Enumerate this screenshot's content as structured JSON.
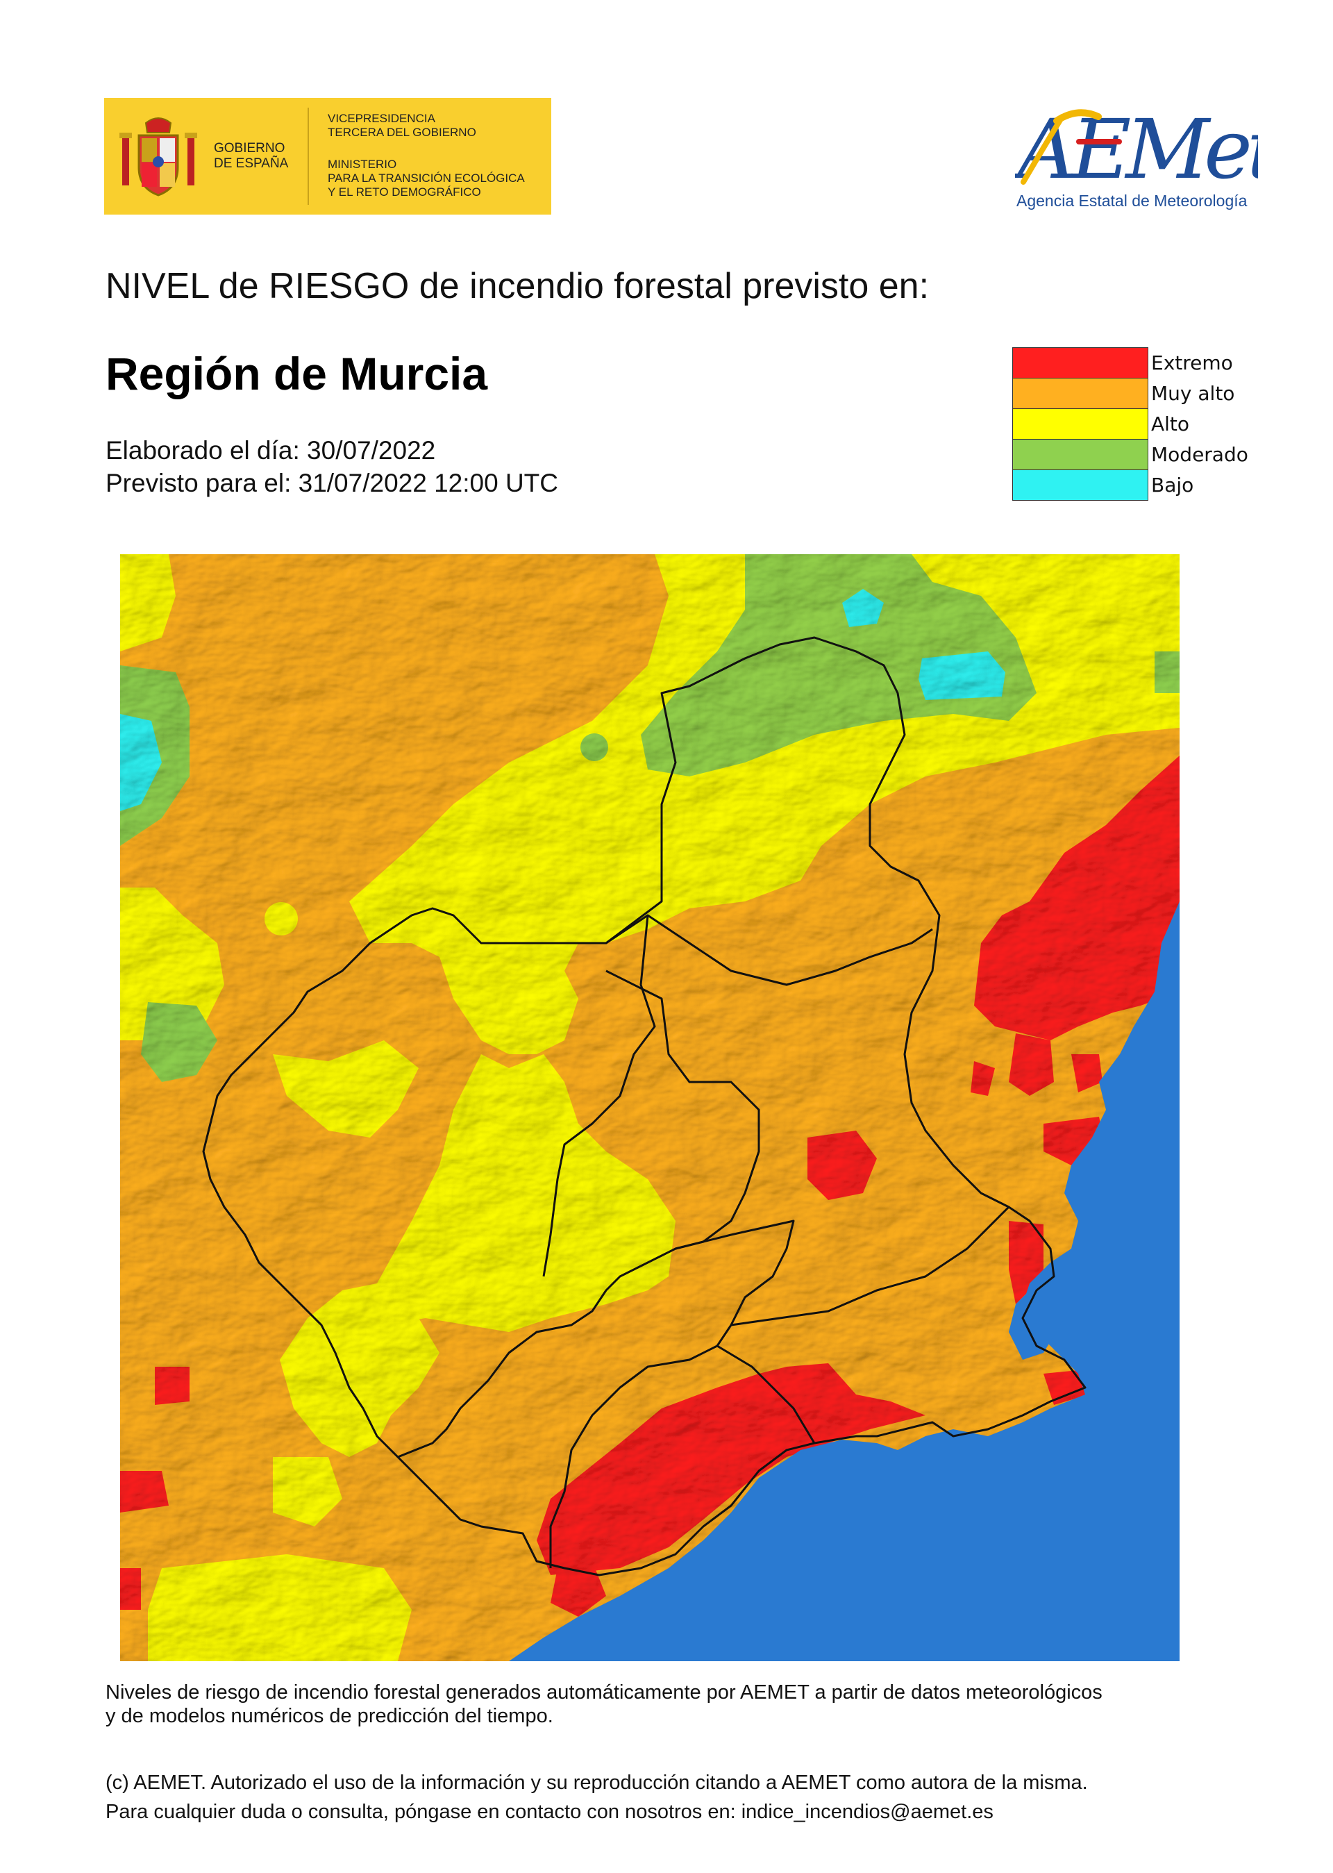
{
  "header": {
    "gov_name": [
      "GOBIERNO",
      "DE ESPAÑA"
    ],
    "gov_vice": [
      "VICEPRESIDENCIA",
      "TERCERA DEL GOBIERNO"
    ],
    "gov_ministry": [
      "MINISTERIO",
      "PARA LA TRANSICIÓN ECOLÓGICA",
      "Y EL RETO DEMOGRÁFICO"
    ],
    "aemet_logo_text": "AEMet",
    "aemet_subtitle": "Agencia Estatal de Meteorología"
  },
  "title": "NIVEL de RIESGO de incendio forestal previsto en:",
  "region": "Región de Murcia",
  "issued": "Elaborado el día: 30/07/2022",
  "valid": "Previsto para el: 31/07/2022 12:00 UTC",
  "legend": [
    {
      "label": "Extremo",
      "color": "#ff1f1f"
    },
    {
      "label": "Muy alto",
      "color": "#ffb020"
    },
    {
      "label": "Alto",
      "color": "#ffff00"
    },
    {
      "label": "Moderado",
      "color": "#8fd14f"
    },
    {
      "label": "Bajo",
      "color": "#2ff2f2"
    }
  ],
  "map": {
    "sea_color": "#2a7ad1",
    "border_color": "#111111"
  },
  "footnotes": {
    "generated": [
      "Niveles de riesgo de incendio forestal generados automáticamente por AEMET a partir de datos meteorológicos",
      "y de modelos numéricos de predicción del tiempo."
    ],
    "copyright": [
      "(c) AEMET. Autorizado el uso de la información y su reproducción citando a AEMET como autora de la misma.",
      "Para cualquier duda o consulta, póngase en contacto con nosotros en: indice_incendios@aemet.es"
    ]
  }
}
